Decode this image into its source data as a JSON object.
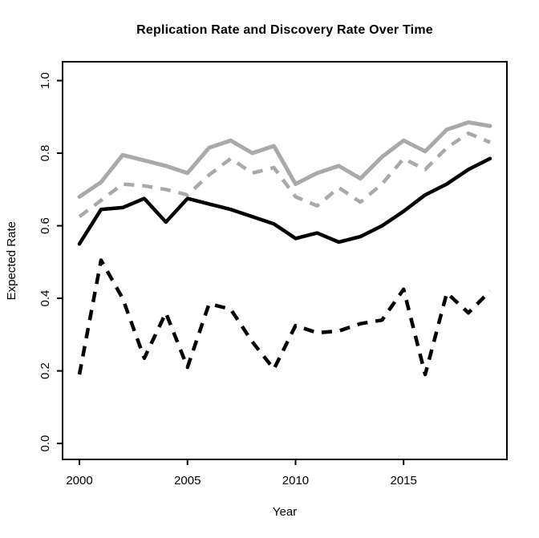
{
  "header": {
    "title": "Replication Rate and Discovery Rate Over Time"
  },
  "chart_data": {
    "type": "line",
    "title": "Replication Rate and Discovery Rate Over Time",
    "xlabel": "Year",
    "ylabel": "Expected Rate",
    "x": [
      2000,
      2001,
      2002,
      2003,
      2004,
      2005,
      2006,
      2007,
      2008,
      2009,
      2010,
      2011,
      2012,
      2013,
      2014,
      2015,
      2016,
      2017,
      2018,
      2019
    ],
    "xlim": [
      1999.22,
      2019.78
    ],
    "ylim": [
      -0.044,
      1.052
    ],
    "xticks": {
      "values": [
        2000,
        2005,
        2010,
        2015
      ],
      "labels": [
        "2000",
        "2005",
        "2010",
        "2015"
      ]
    },
    "yticks": {
      "values": [
        0.0,
        0.2,
        0.4,
        0.6,
        0.8,
        1.0
      ],
      "labels": [
        "0.0",
        "0.2",
        "0.4",
        "0.6",
        "0.8",
        "1.0"
      ]
    },
    "grid": false,
    "legend": "none",
    "axis_color": "#000000",
    "series_colors": {
      "gray": "#a9a9a9",
      "black": "#000000"
    },
    "series": [
      {
        "name": "gray-solid",
        "color": "#a9a9a9",
        "line_style": "solid",
        "values": [
          0.68,
          0.72,
          0.795,
          0.78,
          0.765,
          0.745,
          0.815,
          0.835,
          0.8,
          0.82,
          0.715,
          0.745,
          0.765,
          0.73,
          0.79,
          0.835,
          0.805,
          0.865,
          0.885,
          0.875
        ]
      },
      {
        "name": "gray-dashed",
        "color": "#a9a9a9",
        "line_style": "dashed",
        "values": [
          0.625,
          0.67,
          0.715,
          0.71,
          0.7,
          0.685,
          0.74,
          0.785,
          0.745,
          0.76,
          0.68,
          0.655,
          0.705,
          0.665,
          0.715,
          0.785,
          0.755,
          0.815,
          0.855,
          0.83
        ]
      },
      {
        "name": "black-solid",
        "color": "#000000",
        "line_style": "solid",
        "values": [
          0.55,
          0.645,
          0.65,
          0.675,
          0.61,
          0.675,
          0.66,
          0.645,
          0.625,
          0.605,
          0.565,
          0.58,
          0.555,
          0.57,
          0.6,
          0.64,
          0.685,
          0.715,
          0.755,
          0.785
        ]
      },
      {
        "name": "black-dashed",
        "color": "#000000",
        "line_style": "dashed",
        "values": [
          0.19,
          0.505,
          0.4,
          0.235,
          0.36,
          0.21,
          0.385,
          0.37,
          0.28,
          0.205,
          0.325,
          0.305,
          0.31,
          0.33,
          0.34,
          0.425,
          0.19,
          0.415,
          0.36,
          0.42
        ]
      }
    ]
  }
}
